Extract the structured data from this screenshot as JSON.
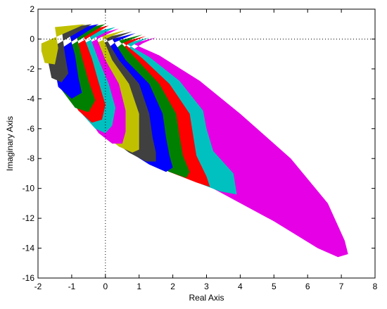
{
  "chart_data": {
    "type": "scatter",
    "title": "",
    "xlabel": "Real Axis",
    "ylabel": "Imaginary Axis",
    "xlim": [
      -2,
      8
    ],
    "ylim": [
      -16,
      2
    ],
    "xticks": [
      -2,
      -1,
      0,
      1,
      2,
      3,
      4,
      5,
      6,
      7,
      8
    ],
    "yticks": [
      2,
      0,
      -2,
      -4,
      -6,
      -8,
      -10,
      -12,
      -14,
      -16
    ],
    "xtick_labels": [
      "-2",
      "-1",
      "0",
      "1",
      "2",
      "3",
      "4",
      "5",
      "6",
      "7",
      "8"
    ],
    "ytick_labels": [
      "2",
      "0",
      "-2",
      "-4",
      "-6",
      "-8",
      "-10",
      "-12",
      "-14",
      "-16"
    ],
    "grid": false,
    "reference_lines": {
      "x": 0,
      "y": 0,
      "style": "dotted"
    },
    "colors": [
      "#E600E6",
      "#00C0C0",
      "#FF0000",
      "#008000",
      "#0000FF",
      "#404040",
      "#C0C000",
      "#E600E6",
      "#00C0C0",
      "#FF0000",
      "#008000",
      "#0000FF",
      "#404040",
      "#C0C000"
    ],
    "series": [
      {
        "outline": [
          [
            1.5,
            0.1
          ],
          [
            0.8,
            -0.3
          ],
          [
            1.6,
            -1.1
          ],
          [
            2.8,
            -2.8
          ],
          [
            4.0,
            -5.0
          ],
          [
            5.5,
            -8.0
          ],
          [
            6.6,
            -11.0
          ],
          [
            7.1,
            -13.5
          ],
          [
            7.2,
            -14.4
          ],
          [
            6.9,
            -14.6
          ],
          [
            6.3,
            -14.0
          ],
          [
            5.0,
            -12.2
          ],
          [
            3.6,
            -10.5
          ],
          [
            2.2,
            -8.8
          ],
          [
            1.1,
            -7.2
          ],
          [
            0.5,
            -5.8
          ],
          [
            0.0,
            -4.0
          ],
          [
            0.0,
            -2.2
          ],
          [
            0.7,
            -0.9
          ],
          [
            1.1,
            -0.3
          ]
        ]
      },
      {
        "outline": [
          [
            1.3,
            0.1
          ],
          [
            0.6,
            -0.3
          ],
          [
            1.3,
            -1.2
          ],
          [
            2.2,
            -2.8
          ],
          [
            2.9,
            -4.8
          ],
          [
            3.0,
            -6.0
          ],
          [
            3.2,
            -7.5
          ],
          [
            3.8,
            -9.0
          ],
          [
            3.9,
            -10.4
          ],
          [
            3.4,
            -10.2
          ],
          [
            2.6,
            -9.5
          ],
          [
            1.7,
            -8.6
          ],
          [
            0.9,
            -7.6
          ],
          [
            0.3,
            -6.3
          ],
          [
            -0.1,
            -4.5
          ],
          [
            -0.2,
            -2.5
          ],
          [
            0.4,
            -1.0
          ],
          [
            0.9,
            -0.3
          ]
        ]
      },
      {
        "outline": [
          [
            1.2,
            0.2
          ],
          [
            0.5,
            -0.2
          ],
          [
            1.1,
            -1.3
          ],
          [
            1.9,
            -3.0
          ],
          [
            2.5,
            -5.0
          ],
          [
            2.6,
            -6.4
          ],
          [
            2.7,
            -7.8
          ],
          [
            3.0,
            -9.2
          ],
          [
            3.1,
            -9.9
          ],
          [
            2.7,
            -9.6
          ],
          [
            1.9,
            -8.9
          ],
          [
            1.1,
            -8.0
          ],
          [
            0.4,
            -6.8
          ],
          [
            -0.1,
            -5.0
          ],
          [
            -0.3,
            -2.8
          ],
          [
            0.2,
            -1.1
          ],
          [
            0.7,
            -0.3
          ]
        ]
      },
      {
        "outline": [
          [
            1.1,
            0.3
          ],
          [
            0.4,
            -0.1
          ],
          [
            0.9,
            -1.3
          ],
          [
            1.6,
            -3.0
          ],
          [
            2.1,
            -5.0
          ],
          [
            2.2,
            -6.5
          ],
          [
            2.3,
            -7.8
          ],
          [
            2.5,
            -8.9
          ],
          [
            2.4,
            -9.3
          ],
          [
            1.9,
            -8.9
          ],
          [
            1.1,
            -8.0
          ],
          [
            0.4,
            -6.9
          ],
          [
            -0.1,
            -5.1
          ],
          [
            -0.4,
            -3.0
          ],
          [
            0.0,
            -1.2
          ],
          [
            0.5,
            -0.3
          ]
        ]
      },
      {
        "outline": [
          [
            0.9,
            0.4
          ],
          [
            0.2,
            0.0
          ],
          [
            0.6,
            -1.4
          ],
          [
            1.3,
            -3.0
          ],
          [
            1.7,
            -5.0
          ],
          [
            1.8,
            -6.6
          ],
          [
            1.9,
            -7.8
          ],
          [
            2.0,
            -8.6
          ],
          [
            1.8,
            -8.9
          ],
          [
            1.3,
            -8.4
          ],
          [
            0.6,
            -7.4
          ],
          [
            0.0,
            -6.2
          ],
          [
            -0.4,
            -4.5
          ],
          [
            -0.6,
            -2.8
          ],
          [
            -0.2,
            -1.1
          ],
          [
            0.3,
            -0.2
          ]
        ]
      },
      {
        "outline": [
          [
            0.8,
            0.5
          ],
          [
            0.0,
            0.1
          ],
          [
            0.4,
            -1.4
          ],
          [
            1.0,
            -3.0
          ],
          [
            1.3,
            -5.0
          ],
          [
            1.4,
            -6.6
          ],
          [
            1.5,
            -7.6
          ],
          [
            1.5,
            -8.2
          ],
          [
            1.2,
            -8.2
          ],
          [
            0.7,
            -7.6
          ],
          [
            0.1,
            -6.6
          ],
          [
            -0.4,
            -5.1
          ],
          [
            -0.7,
            -3.3
          ],
          [
            -0.6,
            -1.5
          ],
          [
            -0.1,
            -0.3
          ]
        ]
      },
      {
        "outline": [
          [
            0.6,
            0.6
          ],
          [
            -0.1,
            0.2
          ],
          [
            0.2,
            -1.4
          ],
          [
            0.7,
            -3.0
          ],
          [
            1.0,
            -5.0
          ],
          [
            1.0,
            -6.5
          ],
          [
            1.0,
            -7.4
          ],
          [
            0.8,
            -7.6
          ],
          [
            0.4,
            -7.2
          ],
          [
            -0.1,
            -6.3
          ],
          [
            -0.6,
            -5.0
          ],
          [
            -0.9,
            -3.4
          ],
          [
            -0.8,
            -1.7
          ],
          [
            -0.4,
            -0.4
          ]
        ]
      },
      {
        "outline": [
          [
            0.4,
            0.7
          ],
          [
            -0.3,
            0.3
          ],
          [
            0.0,
            -1.4
          ],
          [
            0.4,
            -3.0
          ],
          [
            0.6,
            -4.8
          ],
          [
            0.6,
            -6.2
          ],
          [
            0.5,
            -7.0
          ],
          [
            0.2,
            -7.0
          ],
          [
            -0.2,
            -6.3
          ],
          [
            -0.6,
            -5.0
          ],
          [
            -1.0,
            -3.5
          ],
          [
            -1.1,
            -1.8
          ],
          [
            -0.7,
            -0.5
          ]
        ]
      },
      {
        "outline": [
          [
            0.3,
            0.8
          ],
          [
            -0.5,
            0.4
          ],
          [
            -0.2,
            -1.4
          ],
          [
            0.1,
            -3.0
          ],
          [
            0.3,
            -4.6
          ],
          [
            0.2,
            -5.8
          ],
          [
            0.0,
            -6.3
          ],
          [
            -0.3,
            -6.0
          ],
          [
            -0.7,
            -5.0
          ],
          [
            -1.1,
            -3.5
          ],
          [
            -1.2,
            -1.9
          ],
          [
            -0.9,
            -0.6
          ]
        ]
      },
      {
        "outline": [
          [
            0.1,
            0.9
          ],
          [
            -0.7,
            0.5
          ],
          [
            -0.4,
            -1.3
          ],
          [
            -0.2,
            -2.9
          ],
          [
            0.0,
            -4.4
          ],
          [
            -0.1,
            -5.4
          ],
          [
            -0.4,
            -5.6
          ],
          [
            -0.8,
            -4.8
          ],
          [
            -1.2,
            -3.4
          ],
          [
            -1.3,
            -2.0
          ],
          [
            -1.1,
            -0.7
          ]
        ]
      },
      {
        "outline": [
          [
            0.0,
            1.0
          ],
          [
            -0.9,
            0.6
          ],
          [
            -0.7,
            -1.2
          ],
          [
            -0.5,
            -2.8
          ],
          [
            -0.3,
            -4.1
          ],
          [
            -0.5,
            -4.9
          ],
          [
            -0.9,
            -4.6
          ],
          [
            -1.3,
            -3.4
          ],
          [
            -1.4,
            -2.0
          ],
          [
            -1.3,
            -0.8
          ]
        ]
      },
      {
        "outline": [
          [
            -0.2,
            1.0
          ],
          [
            -1.1,
            0.6
          ],
          [
            -0.9,
            -1.1
          ],
          [
            -0.8,
            -2.6
          ],
          [
            -0.7,
            -3.6
          ],
          [
            -1.0,
            -4.0
          ],
          [
            -1.4,
            -3.2
          ],
          [
            -1.5,
            -2.0
          ],
          [
            -1.5,
            -0.9
          ]
        ]
      },
      {
        "outline": [
          [
            -0.4,
            1.0
          ],
          [
            -1.3,
            0.7
          ],
          [
            -1.2,
            -1.0
          ],
          [
            -1.1,
            -2.3
          ],
          [
            -1.3,
            -2.9
          ],
          [
            -1.6,
            -2.6
          ],
          [
            -1.7,
            -1.5
          ],
          [
            -1.7,
            -0.7
          ]
        ]
      },
      {
        "outline": [
          [
            -0.6,
            1.0
          ],
          [
            -1.5,
            0.8
          ],
          [
            -1.4,
            -0.6
          ],
          [
            -1.5,
            -1.7
          ],
          [
            -1.8,
            -1.6
          ],
          [
            -1.9,
            -0.8
          ],
          [
            -1.9,
            -0.3
          ]
        ]
      }
    ]
  }
}
